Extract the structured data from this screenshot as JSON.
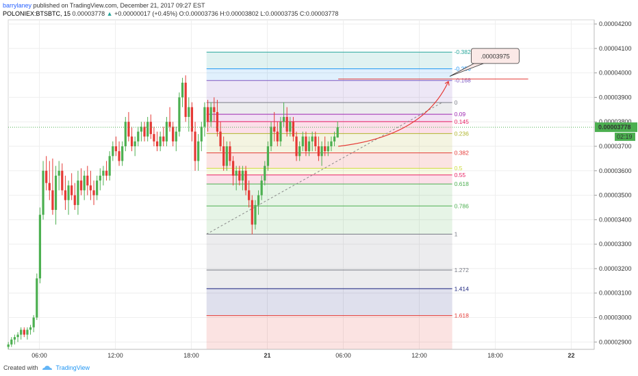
{
  "header": {
    "author": "barrylaney",
    "published_text": "published on TradingView.com, December 21, 2017 09:27 EST",
    "symbol": "POLONIEX:BTSBTC, 15",
    "last": "0.00003778",
    "change_arrow": "▲",
    "change": "+0.00000017 (+0.45%)",
    "open": "O:0.00003736",
    "high": "H:0.00003802",
    "low": "L:0.00003735",
    "close": "C:0.00003778"
  },
  "footer": {
    "created_with": "Created with",
    "brand": "TradingView",
    "logo_icon": "tradingview-cloud-icon"
  },
  "price_badge": {
    "value": "0.00003778",
    "countdown": "02:19",
    "color": "#4caf50"
  },
  "callout": {
    "label": ".00003975"
  },
  "colors": {
    "up": "#4caf50",
    "down": "#e53935",
    "target_line": "#e53935",
    "arrow": "#e53935"
  },
  "chart_data": {
    "type": "candlestick",
    "y_axis": {
      "ticks": [
        "0.00004200",
        "0.00004100",
        "0.00004000",
        "0.00003900",
        "0.00003800",
        "0.00003700",
        "0.00003600",
        "0.00003500",
        "0.00003400",
        "0.00003300",
        "0.00003200",
        "0.00003100",
        "0.00003000",
        "0.00002900"
      ],
      "ylim": [
        2.87e-05,
        4.217e-05
      ],
      "position": "right"
    },
    "x_axis": {
      "ticks": [
        {
          "label": "06:00",
          "h": 6
        },
        {
          "label": "12:00",
          "h": 12
        },
        {
          "label": "18:00",
          "h": 18
        },
        {
          "label": "21",
          "h": 24,
          "bold": true
        },
        {
          "label": "06:00",
          "h": 30
        },
        {
          "label": "12:00",
          "h": 36
        },
        {
          "label": "18:00",
          "h": 42
        },
        {
          "label": "22",
          "h": 48,
          "bold": true
        }
      ]
    },
    "fibonacci": {
      "start_h": 19.2,
      "end_h": 38.6,
      "level_0": 3.879e-05,
      "level_1": 3.341e-05,
      "levels": [
        {
          "label": "-0.382",
          "price": 4.085e-05,
          "color": "#26a69a"
        },
        {
          "label": "-0.256",
          "price": 4.017e-05,
          "color": "#2196f3"
        },
        {
          "label": "-0.168",
          "price": 3.969e-05,
          "color": "#7e57c2"
        },
        {
          "label": "0",
          "price": 3.879e-05,
          "color": "#787b86"
        },
        {
          "label": "0.09",
          "price": 3.831e-05,
          "color": "#9c27b0"
        },
        {
          "label": "0.145",
          "price": 3.801e-05,
          "color": "#e91e63"
        },
        {
          "label": "0.236",
          "price": 3.752e-05,
          "color": "#afb42b"
        },
        {
          "label": "0.382",
          "price": 3.673e-05,
          "color": "#e53935"
        },
        {
          "label": "0.5",
          "price": 3.61e-05,
          "color": "#cddc39"
        },
        {
          "label": "0.55",
          "price": 3.583e-05,
          "color": "#e91e63"
        },
        {
          "label": "0.618",
          "price": 3.546e-05,
          "color": "#4caf50"
        },
        {
          "label": "0.786",
          "price": 3.456e-05,
          "color": "#4caf50"
        },
        {
          "label": "1",
          "price": 3.341e-05,
          "color": "#787b86"
        },
        {
          "label": "1.272",
          "price": 3.194e-05,
          "color": "#787b86"
        },
        {
          "label": "1.414",
          "price": 3.118e-05,
          "color": "#1a237e"
        },
        {
          "label": "1.618",
          "price": 3.008e-05,
          "color": "#e53935"
        }
      ]
    },
    "target_price": 3.975e-05,
    "last_price": 3.778e-05,
    "candles": [
      [
        2.88e-05,
        2.9e-05,
        2.87e-05,
        2.89e-05
      ],
      [
        2.89e-05,
        2.92e-05,
        2.88e-05,
        2.91e-05
      ],
      [
        2.91e-05,
        2.93e-05,
        2.89e-05,
        2.92e-05
      ],
      [
        2.92e-05,
        2.94e-05,
        2.9e-05,
        2.93e-05
      ],
      [
        2.93e-05,
        2.96e-05,
        2.91e-05,
        2.95e-05
      ],
      [
        2.95e-05,
        2.96e-05,
        2.92e-05,
        2.93e-05
      ],
      [
        2.93e-05,
        2.96e-05,
        2.91e-05,
        2.95e-05
      ],
      [
        2.95e-05,
        2.97e-05,
        2.93e-05,
        2.96e-05
      ],
      [
        2.96e-05,
        3.01e-05,
        2.94e-05,
        3e-05
      ],
      [
        3e-05,
        3.18e-05,
        2.99e-05,
        3.16e-05
      ],
      [
        3.16e-05,
        3.45e-05,
        3.14e-05,
        3.42e-05
      ],
      [
        3.42e-05,
        3.64e-05,
        3.4e-05,
        3.6e-05
      ],
      [
        3.6e-05,
        3.66e-05,
        3.52e-05,
        3.55e-05
      ],
      [
        3.55e-05,
        3.64e-05,
        3.48e-05,
        3.52e-05
      ],
      [
        3.52e-05,
        3.65e-05,
        3.42e-05,
        3.44e-05
      ],
      [
        3.44e-05,
        3.62e-05,
        3.38e-05,
        3.58e-05
      ],
      [
        3.58e-05,
        3.64e-05,
        3.52e-05,
        3.6e-05
      ],
      [
        3.6e-05,
        3.63e-05,
        3.5e-05,
        3.52e-05
      ],
      [
        3.52e-05,
        3.58e-05,
        3.44e-05,
        3.48e-05
      ],
      [
        3.48e-05,
        3.56e-05,
        3.42e-05,
        3.54e-05
      ],
      [
        3.54e-05,
        3.59e-05,
        3.48e-05,
        3.5e-05
      ],
      [
        3.5e-05,
        3.55e-05,
        3.44e-05,
        3.46e-05
      ],
      [
        3.46e-05,
        3.6e-05,
        3.42e-05,
        3.56e-05
      ],
      [
        3.56e-05,
        3.61e-05,
        3.5e-05,
        3.52e-05
      ],
      [
        3.52e-05,
        3.6e-05,
        3.48e-05,
        3.58e-05
      ],
      [
        3.58e-05,
        3.62e-05,
        3.5e-05,
        3.54e-05
      ],
      [
        3.54e-05,
        3.6e-05,
        3.48e-05,
        3.52e-05
      ],
      [
        3.52e-05,
        3.56e-05,
        3.46e-05,
        3.5e-05
      ],
      [
        3.5e-05,
        3.58e-05,
        3.48e-05,
        3.56e-05
      ],
      [
        3.56e-05,
        3.61e-05,
        3.52e-05,
        3.58e-05
      ],
      [
        3.58e-05,
        3.62e-05,
        3.54e-05,
        3.6e-05
      ],
      [
        3.6e-05,
        3.64e-05,
        3.56e-05,
        3.58e-05
      ],
      [
        3.58e-05,
        3.68e-05,
        3.56e-05,
        3.66e-05
      ],
      [
        3.66e-05,
        3.72e-05,
        3.64e-05,
        3.7e-05
      ],
      [
        3.7e-05,
        3.74e-05,
        3.66e-05,
        3.68e-05
      ],
      [
        3.68e-05,
        3.72e-05,
        3.62e-05,
        3.64e-05
      ],
      [
        3.64e-05,
        3.72e-05,
        3.62e-05,
        3.7e-05
      ],
      [
        3.7e-05,
        3.82e-05,
        3.68e-05,
        3.8e-05
      ],
      [
        3.8e-05,
        3.84e-05,
        3.72e-05,
        3.74e-05
      ],
      [
        3.74e-05,
        3.78e-05,
        3.68e-05,
        3.7e-05
      ],
      [
        3.7e-05,
        3.74e-05,
        3.66e-05,
        3.72e-05
      ],
      [
        3.72e-05,
        3.78e-05,
        3.7e-05,
        3.76e-05
      ],
      [
        3.76e-05,
        3.8e-05,
        3.72e-05,
        3.78e-05
      ],
      [
        3.78e-05,
        3.8e-05,
        3.72e-05,
        3.74e-05
      ],
      [
        3.74e-05,
        3.82e-05,
        3.72e-05,
        3.8e-05
      ],
      [
        3.8e-05,
        3.83e-05,
        3.73e-05,
        3.75e-05
      ],
      [
        3.75e-05,
        3.78e-05,
        3.7e-05,
        3.72e-05
      ],
      [
        3.72e-05,
        3.76e-05,
        3.68e-05,
        3.7e-05
      ],
      [
        3.7e-05,
        3.76e-05,
        3.68e-05,
        3.74e-05
      ],
      [
        3.74e-05,
        3.78e-05,
        3.7e-05,
        3.72e-05
      ],
      [
        3.72e-05,
        3.82e-05,
        3.7e-05,
        3.8e-05
      ],
      [
        3.8e-05,
        3.86e-05,
        3.76e-05,
        3.78e-05
      ],
      [
        3.78e-05,
        3.8e-05,
        3.7e-05,
        3.72e-05
      ],
      [
        3.72e-05,
        3.78e-05,
        3.68e-05,
        3.76e-05
      ],
      [
        3.76e-05,
        3.92e-05,
        3.74e-05,
        3.9e-05
      ],
      [
        3.9e-05,
        3.98e-05,
        3.86e-05,
        3.96e-05
      ],
      [
        3.96e-05,
        3.99e-05,
        3.8e-05,
        3.82e-05
      ],
      [
        3.82e-05,
        3.9e-05,
        3.76e-05,
        3.86e-05
      ],
      [
        3.86e-05,
        3.88e-05,
        3.72e-05,
        3.76e-05
      ],
      [
        3.76e-05,
        3.8e-05,
        3.6e-05,
        3.64e-05
      ],
      [
        3.64e-05,
        3.75e-05,
        3.6e-05,
        3.72e-05
      ],
      [
        3.72e-05,
        3.8e-05,
        3.68e-05,
        3.78e-05
      ],
      [
        3.78e-05,
        3.88e-05,
        3.74e-05,
        3.86e-05
      ],
      [
        3.86e-05,
        3.89e-05,
        3.76e-05,
        3.8e-05
      ],
      [
        3.8e-05,
        3.88e-05,
        3.78e-05,
        3.86e-05
      ],
      [
        3.86e-05,
        3.9e-05,
        3.8e-05,
        3.84e-05
      ],
      [
        3.84e-05,
        3.89e-05,
        3.74e-05,
        3.76e-05
      ],
      [
        3.76e-05,
        3.8e-05,
        3.68e-05,
        3.7e-05
      ],
      [
        3.7e-05,
        3.74e-05,
        3.6e-05,
        3.62e-05
      ],
      [
        3.62e-05,
        3.72e-05,
        3.6e-05,
        3.7e-05
      ],
      [
        3.7e-05,
        3.72e-05,
        3.62e-05,
        3.64e-05
      ],
      [
        3.64e-05,
        3.66e-05,
        3.54e-05,
        3.58e-05
      ],
      [
        3.58e-05,
        3.62e-05,
        3.52e-05,
        3.6e-05
      ],
      [
        3.6e-05,
        3.62e-05,
        3.54e-05,
        3.56e-05
      ],
      [
        3.56e-05,
        3.62e-05,
        3.52e-05,
        3.6e-05
      ],
      [
        3.6e-05,
        3.62e-05,
        3.5e-05,
        3.52e-05
      ],
      [
        3.52e-05,
        3.56e-05,
        3.45e-05,
        3.48e-05
      ],
      [
        3.48e-05,
        3.5e-05,
        3.34e-05,
        3.38e-05
      ],
      [
        3.38e-05,
        3.48e-05,
        3.36e-05,
        3.46e-05
      ],
      [
        3.46e-05,
        3.52e-05,
        3.42e-05,
        3.5e-05
      ],
      [
        3.5e-05,
        3.58e-05,
        3.48e-05,
        3.56e-05
      ],
      [
        3.56e-05,
        3.64e-05,
        3.54e-05,
        3.62e-05
      ],
      [
        3.62e-05,
        3.72e-05,
        3.6e-05,
        3.7e-05
      ],
      [
        3.7e-05,
        3.8e-05,
        3.68e-05,
        3.78e-05
      ],
      [
        3.78e-05,
        3.84e-05,
        3.72e-05,
        3.76e-05
      ],
      [
        3.76e-05,
        3.8e-05,
        3.7e-05,
        3.72e-05
      ],
      [
        3.72e-05,
        3.82e-05,
        3.7e-05,
        3.8e-05
      ],
      [
        3.8e-05,
        3.88e-05,
        3.78e-05,
        3.82e-05
      ],
      [
        3.82e-05,
        3.86e-05,
        3.74e-05,
        3.76e-05
      ],
      [
        3.76e-05,
        3.82e-05,
        3.74e-05,
        3.8e-05
      ],
      [
        3.8e-05,
        3.82e-05,
        3.72e-05,
        3.74e-05
      ],
      [
        3.74e-05,
        3.76e-05,
        3.64e-05,
        3.66e-05
      ],
      [
        3.66e-05,
        3.72e-05,
        3.64e-05,
        3.7e-05
      ],
      [
        3.7e-05,
        3.76e-05,
        3.68e-05,
        3.74e-05
      ],
      [
        3.74e-05,
        3.76e-05,
        3.66e-05,
        3.68e-05
      ],
      [
        3.68e-05,
        3.74e-05,
        3.66e-05,
        3.72e-05
      ],
      [
        3.72e-05,
        3.76e-05,
        3.68e-05,
        3.74e-05
      ],
      [
        3.74e-05,
        3.76e-05,
        3.68e-05,
        3.7e-05
      ],
      [
        3.7e-05,
        3.74e-05,
        3.64e-05,
        3.66e-05
      ],
      [
        3.66e-05,
        3.72e-05,
        3.62e-05,
        3.7e-05
      ],
      [
        3.7e-05,
        3.74e-05,
        3.66e-05,
        3.68e-05
      ],
      [
        3.68e-05,
        3.72e-05,
        3.66e-05,
        3.7e-05
      ],
      [
        3.7e-05,
        3.74e-05,
        3.68e-05,
        3.72e-05
      ],
      [
        3.72e-05,
        3.76e-05,
        3.7e-05,
        3.74e-05
      ],
      [
        3.736e-05,
        3.802e-05,
        3.735e-05,
        3.778e-05
      ]
    ]
  }
}
